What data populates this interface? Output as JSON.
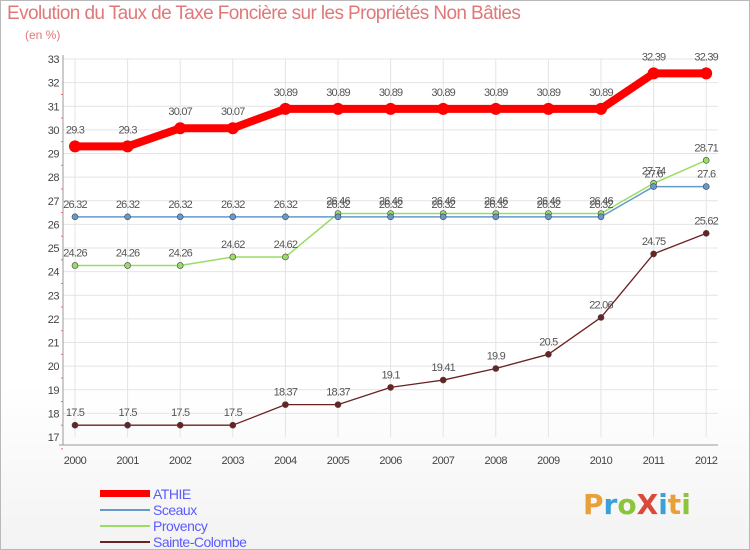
{
  "title": "Evolution du Taux de Taxe Foncière sur les Propriétés Non Bâties",
  "unit_label": "(en %)",
  "logo": {
    "text": "Proxiti",
    "letters": [
      {
        "ch": "P",
        "color": "#e8a03a"
      },
      {
        "ch": "r",
        "color": "#3aa0d8"
      },
      {
        "ch": "o",
        "color": "#8cc43c"
      },
      {
        "ch": "X",
        "color": "#d94a3a"
      },
      {
        "ch": "i",
        "color": "#3aa0d8"
      },
      {
        "ch": "t",
        "color": "#e8a03a"
      },
      {
        "ch": "i",
        "color": "#8cc43c"
      }
    ]
  },
  "chart_data": {
    "type": "line",
    "title": "Evolution du Taux de Taxe Foncière sur les Propriétés Non Bâties",
    "ylabel": "(en %)",
    "xlabel": "",
    "categories": [
      "2000",
      "2001",
      "2002",
      "2003",
      "2004",
      "2005",
      "2006",
      "2007",
      "2008",
      "2009",
      "2010",
      "2011",
      "2012"
    ],
    "ylim": [
      17,
      33
    ],
    "yticks": [
      17,
      18,
      19,
      20,
      21,
      22,
      23,
      24,
      25,
      26,
      27,
      28,
      29,
      30,
      31,
      32,
      33
    ],
    "grid": true,
    "legend_position": "bottom-left",
    "series": [
      {
        "name": "ATHIE",
        "color": "#ff0000",
        "values": [
          29.3,
          29.3,
          30.07,
          30.07,
          30.89,
          30.89,
          30.89,
          30.89,
          30.89,
          30.89,
          30.89,
          32.39,
          32.39
        ],
        "labels": [
          "29.3",
          "29.3",
          "30.07",
          "30.07",
          "30.89",
          "30.89",
          "30.89",
          "30.89",
          "30.89",
          "30.89",
          "30.89",
          "32.39",
          "32.39"
        ]
      },
      {
        "name": "Sceaux",
        "color": "#6699cc",
        "values": [
          26.32,
          26.32,
          26.32,
          26.32,
          26.32,
          26.32,
          26.32,
          26.32,
          26.32,
          26.32,
          26.32,
          27.6,
          27.6
        ],
        "labels": [
          "26.32",
          "26.32",
          "26.32",
          "26.32",
          "26.32",
          "26.32",
          "26.32",
          "26.32",
          "26.32",
          "26.32",
          "26.32",
          "27.6",
          "27.6"
        ]
      },
      {
        "name": "Provency",
        "color": "#99dd66",
        "values": [
          24.26,
          24.26,
          24.26,
          24.62,
          24.62,
          26.46,
          26.46,
          26.46,
          26.46,
          26.46,
          26.46,
          27.74,
          28.71
        ],
        "labels": [
          "24.26",
          "24.26",
          "24.26",
          "24.62",
          "24.62",
          "26.46",
          "26.46",
          "26.46",
          "26.46",
          "26.46",
          "26.46",
          "27.74",
          "28.71"
        ]
      },
      {
        "name": "Sainte-Colombe",
        "color": "#6b2222",
        "values": [
          17.5,
          17.5,
          17.5,
          17.5,
          18.37,
          18.37,
          19.1,
          19.41,
          19.9,
          20.5,
          22.06,
          24.75,
          25.62
        ],
        "labels": [
          "17.5",
          "17.5",
          "17.5",
          "17.5",
          "18.37",
          "18.37",
          "19.1",
          "19.41",
          "19.9",
          "20.5",
          "22.06",
          "24.75",
          "25.62"
        ]
      }
    ]
  }
}
